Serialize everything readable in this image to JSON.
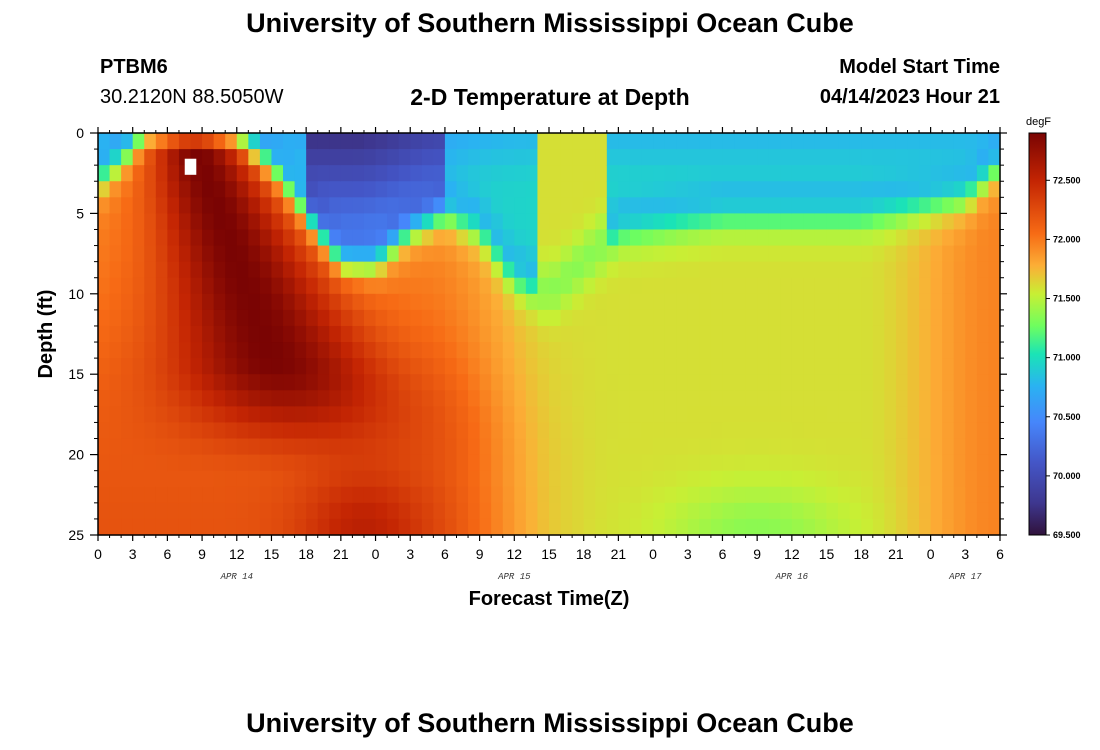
{
  "header": {
    "title": "University of Southern Mississippi Ocean Cube",
    "station": "PTBM6",
    "coords": "30.2120N  88.5050W",
    "subtitle": "2-D Temperature at Depth",
    "model_label": "Model Start Time",
    "model_time": "04/14/2023 Hour 21"
  },
  "footer": {
    "title": "University of Southern Mississippi Ocean Cube"
  },
  "chart_data": {
    "type": "heatmap",
    "title": "2-D Temperature at Depth",
    "xlabel": "Forecast Time(Z)",
    "ylabel": "Depth (ft)",
    "x_range_hours": [
      0,
      78
    ],
    "y_range_ft": [
      0,
      25
    ],
    "x_ticks": [
      "0",
      "3",
      "6",
      "9",
      "12",
      "15",
      "18",
      "21",
      "0",
      "3",
      "6",
      "9",
      "12",
      "15",
      "18",
      "21",
      "0",
      "3",
      "6",
      "9",
      "12",
      "15",
      "18",
      "21",
      "0",
      "3",
      "6"
    ],
    "y_ticks": [
      "0",
      "5",
      "10",
      "15",
      "20",
      "25"
    ],
    "date_labels": [
      {
        "text": "APR 14",
        "hour": 12
      },
      {
        "text": "APR 15",
        "hour": 36
      },
      {
        "text": "APR 16",
        "hour": 60
      },
      {
        "text": "APR 17",
        "hour": 75
      }
    ],
    "colorbar": {
      "unit": "degF",
      "range": [
        69.5,
        72.9
      ],
      "ticks": [
        "72.500",
        "72.000",
        "71.500",
        "71.000",
        "70.500",
        "70.000",
        "69.500"
      ]
    },
    "surface_layer_bottom_ft": [
      {
        "hour": 0,
        "depth": 3
      },
      {
        "hour": 3,
        "depth": 1
      },
      {
        "hour": 4,
        "depth": 0
      },
      {
        "hour": 12,
        "depth": 0
      },
      {
        "hour": 15,
        "depth": 2
      },
      {
        "hour": 18,
        "depth": 5
      },
      {
        "hour": 21,
        "depth": 8
      },
      {
        "hour": 24,
        "depth": 8
      },
      {
        "hour": 27,
        "depth": 6
      },
      {
        "hour": 30,
        "depth": 5
      },
      {
        "hour": 33,
        "depth": 6
      },
      {
        "hour": 36,
        "depth": 9
      },
      {
        "hour": 39,
        "depth": 10
      },
      {
        "hour": 45,
        "depth": 6
      },
      {
        "hour": 54,
        "depth": 5
      },
      {
        "hour": 66,
        "depth": 5
      },
      {
        "hour": 75,
        "depth": 4
      },
      {
        "hour": 78,
        "depth": 2
      }
    ],
    "warm_core": {
      "peak_hour": 8,
      "min_temp": 72.9,
      "extent_ft": [
        0,
        16
      ]
    },
    "cool_core": {
      "hour_range": [
        18,
        30
      ],
      "depth_ft": [
        0,
        2
      ],
      "min_temp": 69.7
    }
  }
}
